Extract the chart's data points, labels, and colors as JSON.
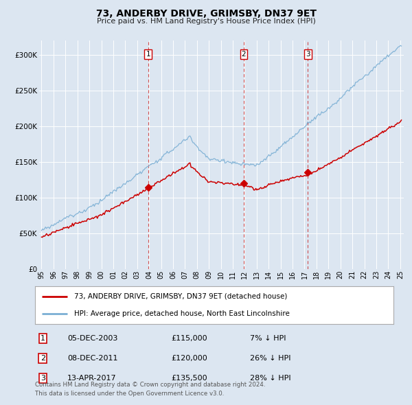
{
  "title": "73, ANDERBY DRIVE, GRIMSBY, DN37 9ET",
  "subtitle": "Price paid vs. HM Land Registry's House Price Index (HPI)",
  "hpi_label": "HPI: Average price, detached house, North East Lincolnshire",
  "property_label": "73, ANDERBY DRIVE, GRIMSBY, DN37 9ET (detached house)",
  "hpi_color": "#7bafd4",
  "property_color": "#cc0000",
  "vline_color": "#cc3333",
  "background_color": "#dce6f1",
  "chart_bg": "#dce6f1",
  "grid_color": "#ffffff",
  "sale_labels": [
    "1",
    "2",
    "3"
  ],
  "sale_years": [
    2003.92,
    2011.92,
    2017.28
  ],
  "sale_prices": [
    115000,
    120000,
    135500
  ],
  "sale_info": [
    {
      "label": "1",
      "date": "05-DEC-2003",
      "price": "£115,000",
      "pct": "7% ↓ HPI"
    },
    {
      "label": "2",
      "date": "08-DEC-2011",
      "price": "£120,000",
      "pct": "26% ↓ HPI"
    },
    {
      "label": "3",
      "date": "13-APR-2017",
      "price": "£135,500",
      "pct": "28% ↓ HPI"
    }
  ],
  "footnote1": "Contains HM Land Registry data © Crown copyright and database right 2024.",
  "footnote2": "This data is licensed under the Open Government Licence v3.0.",
  "ylim": [
    0,
    320000
  ],
  "yticks": [
    0,
    50000,
    100000,
    150000,
    200000,
    250000,
    300000
  ],
  "xlim_start": 1994.8,
  "xlim_end": 2025.3,
  "xtick_years": [
    1995,
    1996,
    1997,
    1998,
    1999,
    2000,
    2001,
    2002,
    2003,
    2004,
    2005,
    2006,
    2007,
    2008,
    2009,
    2010,
    2011,
    2012,
    2013,
    2014,
    2015,
    2016,
    2017,
    2018,
    2019,
    2020,
    2021,
    2022,
    2023,
    2024,
    2025
  ]
}
